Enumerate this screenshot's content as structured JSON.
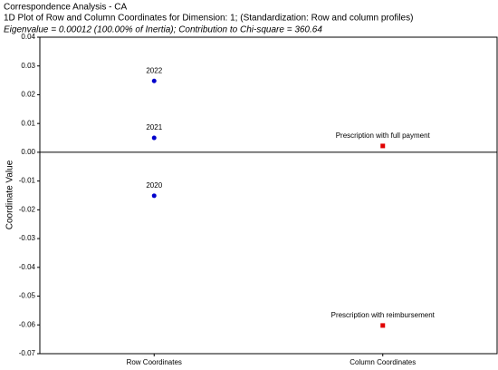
{
  "chart_data": {
    "type": "scatter",
    "title": "Correspondence Analysis - CA",
    "subtitle": "1D Plot of Row and Column Coordinates for Dimension: 1; (Standardization: Row and column profiles)",
    "annotation": "Eigenvalue = 0.00012 (100.00% of Inertia); Contribution to Chi-square = 360.64",
    "ylabel": "Coordinate Value",
    "categories": [
      "Row Coordinates",
      "Column Coordinates"
    ],
    "series": [
      {
        "color": "#0000cc",
        "marker": "circle",
        "labels": [
          "2022",
          "2021",
          "2020"
        ],
        "values": [
          0.0248,
          0.005,
          -0.0151
        ]
      },
      {
        "color": "#e00000",
        "marker": "square",
        "labels": [
          "Prescription with full payment",
          "Prescription with reimbursement"
        ],
        "values": [
          0.0022,
          -0.0602
        ]
      }
    ],
    "ylim": [
      -0.07,
      0.04
    ],
    "yticks": [
      -0.07,
      -0.06,
      -0.05,
      -0.04,
      -0.03,
      -0.02,
      -0.01,
      {
        "value": 0,
        "label": "0.00"
      },
      0.01,
      0.02,
      0.03,
      0.04
    ]
  }
}
